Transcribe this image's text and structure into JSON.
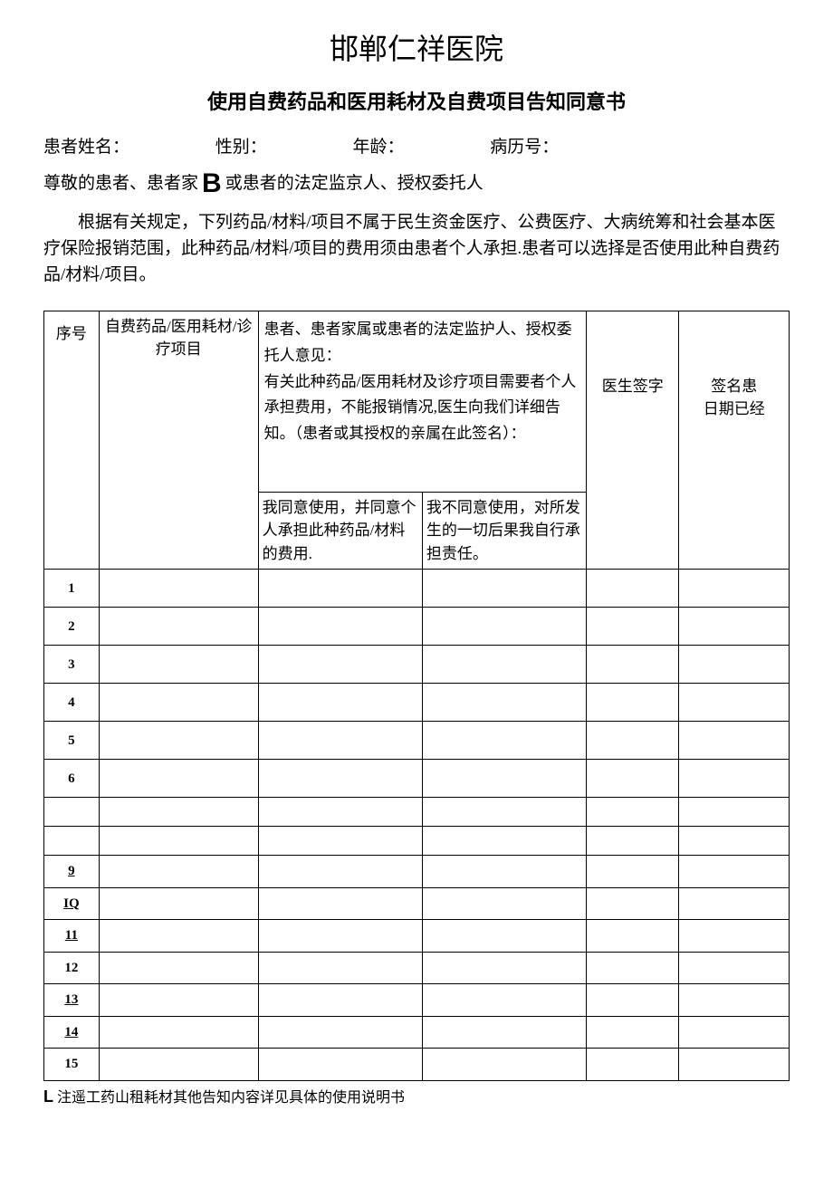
{
  "title": "邯郸仁祥医院",
  "subtitle": "使用自费药品和医用耗材及自费项目告知同意书",
  "info_labels": {
    "name": "患者姓名：",
    "sex": "性别：",
    "age": "年龄：",
    "record_no": "病历号："
  },
  "line2_pre": "尊敬的患者、患者家",
  "line2_b": "B",
  "line2_post": "或患者的法定监京人、授权委托人",
  "paragraph": "根据有关规定，下列药品/材料/项目不属于民生资金医疗、公费医疗、大病统筹和社会基本医疗保险报销范围，此种药品/材料/项目的费用须由患者个人承担.患者可以选择是否使用此种自费药品/材料/项目。",
  "table": {
    "header": {
      "seq": "序号",
      "item": "自费药品/医用耗材/诊疗项目",
      "opinion_top": "患者、患者家属或患者的法定监护人、授权委托人意见：\n有关此种药品/医用耗材及诊疗项目需要者个人承担费用，不能报销情况,医生向我们详细告知。（患者或其授权的亲属在此签名）：",
      "agree": "我同意使用，并同意个人承担此种药品/材料的费用.",
      "disagree": "我不同意使用，对所发生的一切后果我自行承担责任。",
      "doctor_sign": "医生签字",
      "sign_date": "签名患\n日期已经"
    },
    "rows": [
      {
        "seq": "1",
        "height": "tall",
        "ul": false
      },
      {
        "seq": "2",
        "height": "tall",
        "ul": false
      },
      {
        "seq": "3",
        "height": "tall",
        "ul": false
      },
      {
        "seq": "4",
        "height": "tall",
        "ul": false
      },
      {
        "seq": "5",
        "height": "tall",
        "ul": false
      },
      {
        "seq": "6",
        "height": "tall",
        "ul": false
      },
      {
        "seq": "",
        "height": "med",
        "ul": false
      },
      {
        "seq": "",
        "height": "med",
        "ul": false
      },
      {
        "seq": "9",
        "height": "med",
        "ul": true
      },
      {
        "seq": "IQ",
        "height": "short",
        "ul": true
      },
      {
        "seq": "11",
        "height": "short",
        "ul": true
      },
      {
        "seq": "12",
        "height": "short",
        "ul": false
      },
      {
        "seq": "13",
        "height": "short",
        "ul": true
      },
      {
        "seq": "14",
        "height": "short",
        "ul": true
      },
      {
        "seq": "15",
        "height": "short",
        "ul": false
      }
    ]
  },
  "footnote_l": "L",
  "footnote": "注遥工药山租耗材其他告知内容详见具体的使用说明书"
}
